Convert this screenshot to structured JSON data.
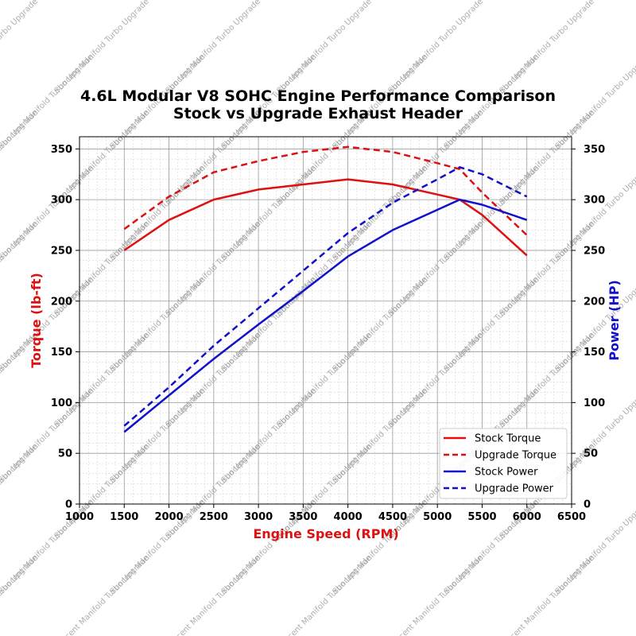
{
  "chart_data": {
    "type": "line",
    "title": "4.6L Modular V8 SOHC Engine Performance Comparison",
    "subtitle": "Stock vs Upgrade Exhaust Header",
    "xlabel": "Engine Speed (RPM)",
    "ylabel_left": "Torque (lb-ft)",
    "ylabel_right": "Power (HP)",
    "xlim": [
      1000,
      6500
    ],
    "ylim_left": [
      0,
      362
    ],
    "ylim_right": [
      0,
      362
    ],
    "xticks": [
      "1000",
      "1500",
      "2000",
      "2500",
      "3000",
      "3500",
      "4000",
      "4500",
      "5000",
      "5500",
      "6000",
      "6500"
    ],
    "yticks_left": [
      "0",
      "50",
      "100",
      "150",
      "200",
      "250",
      "300",
      "350"
    ],
    "yticks_right": [
      "0",
      "50",
      "100",
      "150",
      "200",
      "250",
      "300",
      "350"
    ],
    "grid": true,
    "legend_position": "lower-right",
    "watermark": "Suncent Manifold Turbo Upgrade",
    "colors": {
      "torque": "#dd1111",
      "power": "#1111cc",
      "xlabel": "#dd1111",
      "ylabel_left": "#dd1111",
      "ylabel_right": "#1111cc"
    },
    "series": [
      {
        "name": "Stock Torque",
        "axis": "left",
        "color": "#dd1111",
        "dash": "solid",
        "x": [
          1500,
          2000,
          2500,
          3000,
          3500,
          4000,
          4500,
          5000,
          5250,
          5500,
          6000
        ],
        "y": [
          250,
          280,
          300,
          310,
          315,
          320,
          315,
          305,
          300,
          285,
          245
        ]
      },
      {
        "name": "Upgrade Torque",
        "axis": "left",
        "color": "#dd1111",
        "dash": "dashed",
        "x": [
          1500,
          2000,
          2500,
          3000,
          3500,
          4000,
          4500,
          5000,
          5250,
          5500,
          6000
        ],
        "y": [
          271,
          303,
          327,
          338,
          347,
          352,
          347,
          336,
          330,
          307,
          265
        ]
      },
      {
        "name": "Stock Power",
        "axis": "right",
        "color": "#1111cc",
        "dash": "solid",
        "x": [
          1500,
          2000,
          2500,
          3000,
          3500,
          4000,
          4500,
          5000,
          5250,
          5500,
          6000
        ],
        "y": [
          71,
          107,
          143,
          177,
          210,
          244,
          270,
          290,
          300,
          295,
          280
        ]
      },
      {
        "name": "Upgrade Power",
        "axis": "right",
        "color": "#1111cc",
        "dash": "dashed",
        "x": [
          1500,
          2000,
          2500,
          3000,
          3500,
          4000,
          4500,
          5000,
          5250,
          5500,
          6000
        ],
        "y": [
          77,
          115,
          156,
          193,
          230,
          267,
          297,
          320,
          332,
          325,
          303
        ]
      }
    ]
  }
}
